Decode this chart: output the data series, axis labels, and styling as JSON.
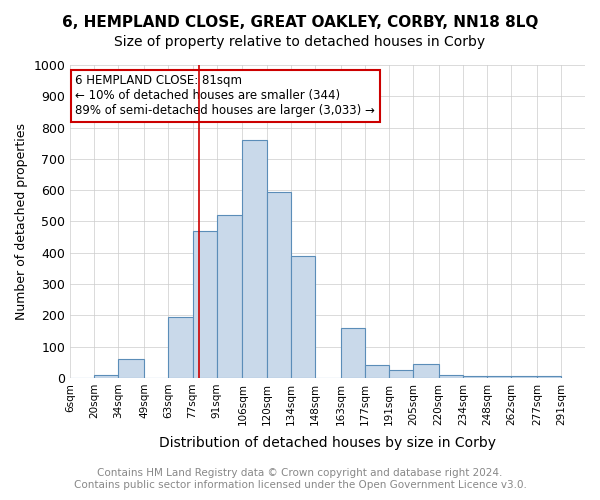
{
  "title1": "6, HEMPLAND CLOSE, GREAT OAKLEY, CORBY, NN18 8LQ",
  "title2": "Size of property relative to detached houses in Corby",
  "xlabel": "Distribution of detached houses by size in Corby",
  "ylabel": "Number of detached properties",
  "footer1": "Contains HM Land Registry data © Crown copyright and database right 2024.",
  "footer2": "Contains public sector information licensed under the Open Government Licence v3.0.",
  "annotation_line1": "6 HEMPLAND CLOSE: 81sqm",
  "annotation_line2": "← 10% of detached houses are smaller (344)",
  "annotation_line3": "89% of semi-detached houses are larger (3,033) →",
  "bar_left_edges": [
    6,
    20,
    34,
    49,
    63,
    77,
    91,
    106,
    120,
    134,
    148,
    163,
    177,
    191,
    205,
    220,
    234,
    248,
    262,
    277
  ],
  "bar_widths": [
    14,
    14,
    15,
    14,
    14,
    14,
    15,
    14,
    14,
    14,
    15,
    14,
    14,
    14,
    15,
    14,
    14,
    14,
    15,
    14
  ],
  "bar_heights": [
    0,
    10,
    60,
    0,
    195,
    470,
    520,
    760,
    595,
    390,
    0,
    160,
    40,
    25,
    45,
    10,
    5,
    5,
    5,
    5
  ],
  "bar_color": "#c9d9ea",
  "bar_edge_color": "#5b8db8",
  "red_line_x": 81,
  "ylim": [
    0,
    1000
  ],
  "xlim_left": 6,
  "xlim_right": 291,
  "xtick_positions": [
    6,
    20,
    34,
    49,
    63,
    77,
    91,
    106,
    120,
    134,
    148,
    163,
    177,
    191,
    205,
    220,
    234,
    248,
    262,
    277,
    291
  ],
  "xtick_labels": [
    "6sqm",
    "20sqm",
    "34sqm",
    "49sqm",
    "63sqm",
    "77sqm",
    "91sqm",
    "106sqm",
    "120sqm",
    "134sqm",
    "148sqm",
    "163sqm",
    "177sqm",
    "191sqm",
    "205sqm",
    "220sqm",
    "234sqm",
    "248sqm",
    "262sqm",
    "277sqm",
    "291sqm"
  ],
  "grid_color": "#cccccc",
  "bg_color": "#ffffff",
  "annotation_box_color": "#ffffff",
  "annotation_box_edge": "#cc0000",
  "title1_fontsize": 11,
  "title2_fontsize": 10,
  "ylabel_fontsize": 9,
  "xlabel_fontsize": 10,
  "xtick_fontsize": 7.5,
  "ytick_fontsize": 9,
  "footer_fontsize": 7.5
}
